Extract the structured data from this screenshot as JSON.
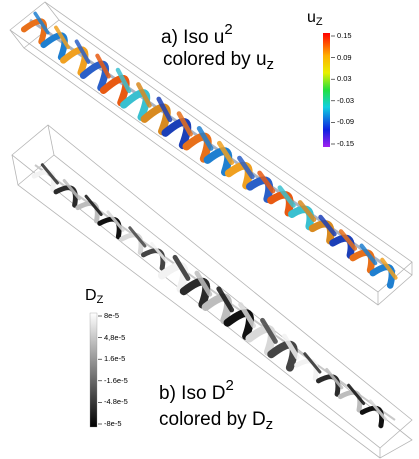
{
  "panel_a": {
    "label": "a) Iso u",
    "power": "2",
    "line2_prefix": "colored by u",
    "line2_sub": "z",
    "colorbar": {
      "title_base": "u",
      "title_sub": "Z",
      "ticks": [
        "0.15",
        "0.09",
        "0.03",
        "-0.03",
        "-0.09",
        "-0.15"
      ],
      "colors": [
        "#e8141c",
        "#f5d80a",
        "#22d632",
        "#18c8d8",
        "#1f2bd8",
        "#a020f0"
      ]
    }
  },
  "panel_b": {
    "label": "b) Iso D",
    "power": "2",
    "line2_prefix": "colored by D",
    "line2_sub": "z",
    "colorbar": {
      "title_base": "D",
      "title_sub": "Z",
      "ticks": [
        "8e-5",
        "4,8e-5",
        "1.6e-5",
        "-1.6e-5",
        "-4.8e-5",
        "-8e-5"
      ],
      "colors": [
        "#ffffff",
        "#000000"
      ]
    }
  },
  "colors": {
    "vortex_core": "#aab4c4",
    "box_edge": "#b5b5b5",
    "ribbon_gray_light": "#f0f0f0",
    "ribbon_gray_dark": "#1a1a1a"
  }
}
